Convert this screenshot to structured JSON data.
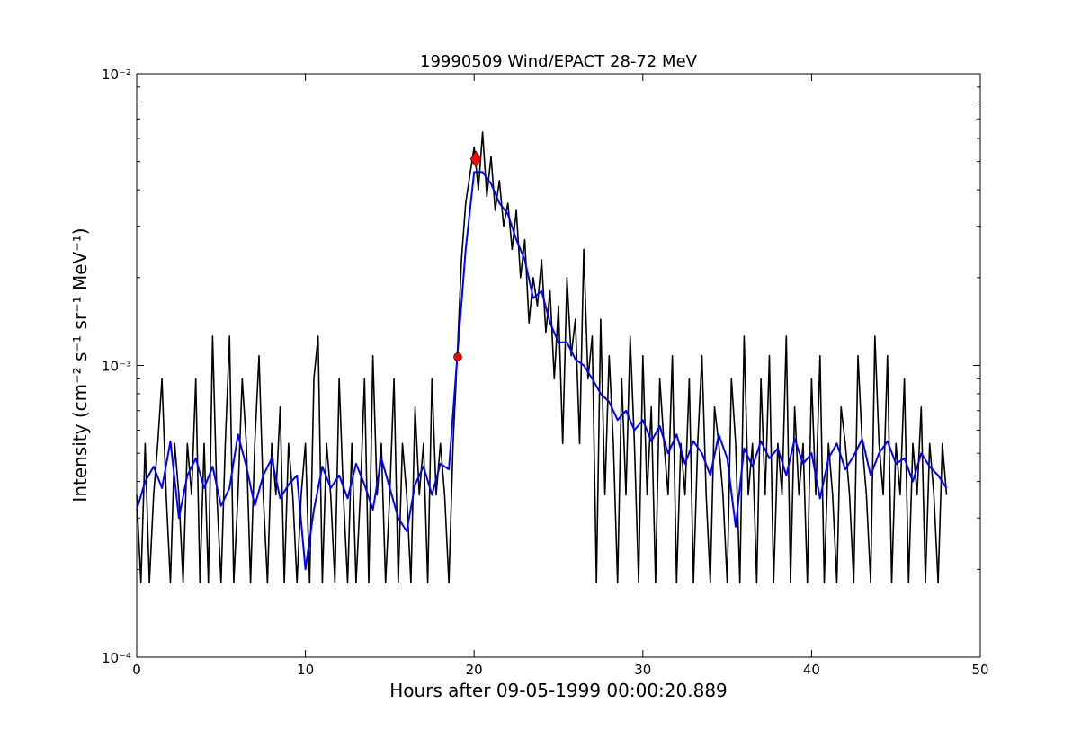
{
  "chart_data": {
    "type": "line",
    "title": "19990509 Wind/EPACT 28-72 MeV",
    "xlabel": "Hours after 09-05-1999 00:00:20.889",
    "ylabel": "Intensity (cm⁻² s⁻¹ sr⁻¹ MeV⁻¹)",
    "xlim": [
      0,
      50
    ],
    "ylim": [
      0.0001,
      0.01
    ],
    "yscale": "log",
    "grid": false,
    "x_ticks": [
      0,
      10,
      20,
      30,
      40,
      50
    ],
    "x_tick_labels": [
      "0",
      "10",
      "20",
      "30",
      "40",
      "50"
    ],
    "y_ticks": [
      0.01,
      0.001,
      0.0001
    ],
    "y_tick_labels": [
      "10⁻²",
      "10⁻³",
      "10⁻⁴"
    ],
    "series": [
      {
        "color": "#000000",
        "x": [
          0,
          0.25,
          0.5,
          0.75,
          1,
          1.25,
          1.5,
          1.75,
          2,
          2.25,
          2.5,
          2.75,
          3,
          3.25,
          3.5,
          3.75,
          4,
          4.25,
          4.5,
          4.75,
          5,
          5.25,
          5.5,
          5.75,
          6,
          6.25,
          6.5,
          6.75,
          7,
          7.25,
          7.5,
          7.75,
          8,
          8.25,
          8.5,
          8.75,
          9,
          9.25,
          9.5,
          9.75,
          10,
          10.25,
          10.5,
          10.75,
          11,
          11.25,
          11.5,
          11.75,
          12,
          12.25,
          12.5,
          12.75,
          13,
          13.25,
          13.5,
          13.75,
          14,
          14.25,
          14.5,
          14.75,
          15,
          15.25,
          15.5,
          15.75,
          16,
          16.25,
          16.5,
          16.75,
          17,
          17.25,
          17.5,
          17.75,
          18,
          18.25,
          18.5,
          18.75,
          19,
          19.25,
          19.5,
          19.75,
          20,
          20.25,
          20.5,
          20.75,
          21,
          21.25,
          21.5,
          21.75,
          22,
          22.25,
          22.5,
          22.75,
          23,
          23.25,
          23.5,
          23.75,
          24,
          24.25,
          24.5,
          24.75,
          25,
          25.25,
          25.5,
          25.75,
          26,
          26.25,
          26.5,
          26.75,
          27,
          27.25,
          27.5,
          27.75,
          28,
          28.25,
          28.5,
          28.75,
          29,
          29.25,
          29.5,
          29.75,
          30,
          30.25,
          30.5,
          30.75,
          31,
          31.25,
          31.5,
          31.75,
          32,
          32.25,
          32.5,
          32.75,
          33,
          33.25,
          33.5,
          33.75,
          34,
          34.25,
          34.5,
          34.75,
          35,
          35.25,
          35.5,
          35.75,
          36,
          36.25,
          36.5,
          36.75,
          37,
          37.25,
          37.5,
          37.75,
          38,
          38.25,
          38.5,
          38.75,
          39,
          39.25,
          39.5,
          39.75,
          40,
          40.25,
          40.5,
          40.75,
          41,
          41.25,
          41.5,
          41.75,
          42,
          42.25,
          42.5,
          42.75,
          43,
          43.25,
          43.5,
          43.75,
          44,
          44.25,
          44.5,
          44.75,
          45,
          45.25,
          45.5,
          45.75,
          46,
          46.25,
          46.5,
          46.75,
          47,
          47.25,
          47.5,
          47.75,
          48
        ],
        "y": [
          0.00036,
          0.00018,
          0.00054,
          0.00018,
          0.00036,
          0.00054,
          0.0009,
          0.00036,
          0.00018,
          0.00054,
          0.00036,
          0.00018,
          0.00054,
          0.00036,
          0.0009,
          0.00018,
          0.00054,
          0.00018,
          0.00126,
          0.00036,
          0.00018,
          0.00054,
          0.00126,
          0.00018,
          0.00036,
          0.0009,
          0.00054,
          0.00018,
          0.00054,
          0.00108,
          0.00036,
          0.00018,
          0.00054,
          0.00036,
          0.00072,
          0.00018,
          0.00054,
          0.00036,
          0.00018,
          0.00036,
          0.00054,
          0.00018,
          0.0009,
          0.00126,
          0.00018,
          0.00054,
          0.00036,
          0.00018,
          0.0009,
          0.00036,
          0.00018,
          0.00054,
          0.00018,
          0.00036,
          0.0009,
          0.00018,
          0.00108,
          0.00036,
          0.00054,
          0.00018,
          0.00036,
          0.0009,
          0.00018,
          0.00054,
          0.00036,
          0.00018,
          0.00072,
          0.00036,
          0.00054,
          0.00018,
          0.0009,
          0.00036,
          0.00054,
          0.00036,
          0.00018,
          0.00054,
          0.00108,
          0.0023,
          0.0036,
          0.0045,
          0.0056,
          0.004,
          0.0063,
          0.0038,
          0.0052,
          0.0034,
          0.0043,
          0.003,
          0.0036,
          0.0025,
          0.0034,
          0.002,
          0.0027,
          0.0014,
          0.002,
          0.0016,
          0.0023,
          0.0013,
          0.0018,
          0.0009,
          0.0016,
          0.00054,
          0.002,
          0.00108,
          0.00144,
          0.00054,
          0.0025,
          0.0009,
          0.00126,
          0.00018,
          0.00144,
          0.00036,
          0.00108,
          0.00054,
          0.00018,
          0.0009,
          0.00036,
          0.00126,
          0.00054,
          0.00018,
          0.00108,
          0.00036,
          0.00072,
          0.00018,
          0.0009,
          0.00054,
          0.00036,
          0.00108,
          0.00018,
          0.00054,
          0.00036,
          0.0009,
          0.00018,
          0.00054,
          0.00108,
          0.00036,
          0.00018,
          0.00072,
          0.00054,
          0.00036,
          0.00018,
          0.0009,
          0.00054,
          0.00018,
          0.00126,
          0.00036,
          0.00054,
          0.00018,
          0.0009,
          0.00036,
          0.00108,
          0.00018,
          0.00054,
          0.00036,
          0.00126,
          0.00018,
          0.00072,
          0.00036,
          0.00054,
          0.00018,
          0.0009,
          0.00036,
          0.00108,
          0.00018,
          0.00054,
          0.00036,
          0.00018,
          0.00072,
          0.00054,
          0.00036,
          0.00018,
          0.00108,
          0.00054,
          0.00036,
          0.00018,
          0.00126,
          0.00054,
          0.00036,
          0.00108,
          0.00018,
          0.00054,
          0.00036,
          0.0009,
          0.00018,
          0.00054,
          0.00036,
          0.00072,
          0.00018,
          0.00054,
          0.00036,
          0.00018,
          0.00054,
          0.00036
        ]
      },
      {
        "color": "#0000ff",
        "x": [
          0,
          0.5,
          1,
          1.5,
          2,
          2.5,
          3,
          3.5,
          4,
          4.5,
          5,
          5.5,
          6,
          6.5,
          7,
          7.5,
          8,
          8.5,
          9,
          9.5,
          10,
          10.5,
          11,
          11.5,
          12,
          12.5,
          13,
          13.5,
          14,
          14.5,
          15,
          15.5,
          16,
          16.5,
          17,
          17.5,
          18,
          18.5,
          19,
          19.5,
          20,
          20.5,
          21,
          21.5,
          22,
          22.5,
          23,
          23.5,
          24,
          24.5,
          25,
          25.5,
          26,
          26.5,
          27,
          27.5,
          28,
          28.5,
          29,
          29.5,
          30,
          30.5,
          31,
          31.5,
          32,
          32.5,
          33,
          33.5,
          34,
          34.5,
          35,
          35.5,
          36,
          36.5,
          37,
          37.5,
          38,
          38.5,
          39,
          39.5,
          40,
          40.5,
          41,
          41.5,
          42,
          42.5,
          43,
          43.5,
          44,
          44.5,
          45,
          45.5,
          46,
          46.5,
          47,
          47.5,
          48
        ],
        "y": [
          0.00032,
          0.0004,
          0.00045,
          0.00038,
          0.00055,
          0.0003,
          0.00042,
          0.00048,
          0.00038,
          0.00045,
          0.00033,
          0.00038,
          0.00058,
          0.00045,
          0.00033,
          0.00042,
          0.00048,
          0.00035,
          0.00039,
          0.00042,
          0.0002,
          0.00032,
          0.00045,
          0.00038,
          0.00042,
          0.00035,
          0.00046,
          0.00039,
          0.00032,
          0.00048,
          0.00038,
          0.0003,
          0.00027,
          0.00039,
          0.00045,
          0.00036,
          0.00046,
          0.00044,
          0.00107,
          0.0025,
          0.0046,
          0.0046,
          0.0042,
          0.0036,
          0.0033,
          0.0027,
          0.0023,
          0.0017,
          0.0018,
          0.0014,
          0.0012,
          0.0012,
          0.00105,
          0.001,
          0.0009,
          0.0008,
          0.00075,
          0.00065,
          0.0007,
          0.0006,
          0.00065,
          0.00055,
          0.00062,
          0.0005,
          0.00058,
          0.00046,
          0.00055,
          0.0005,
          0.00042,
          0.00058,
          0.00048,
          0.00028,
          0.00052,
          0.00045,
          0.00055,
          0.00048,
          0.00052,
          0.00042,
          0.00056,
          0.00046,
          0.0005,
          0.00035,
          0.00048,
          0.00054,
          0.00044,
          0.00049,
          0.00056,
          0.00042,
          0.0005,
          0.00055,
          0.00046,
          0.00048,
          0.0004,
          0.0005,
          0.00045,
          0.00042,
          0.00038
        ]
      }
    ],
    "markers": [
      {
        "shape": "circle",
        "color": "#ff0000",
        "x": 19.03,
        "y": 0.00107
      },
      {
        "shape": "diamond",
        "color": "#ff0000",
        "x": 20.1,
        "y": 0.0051
      }
    ]
  }
}
